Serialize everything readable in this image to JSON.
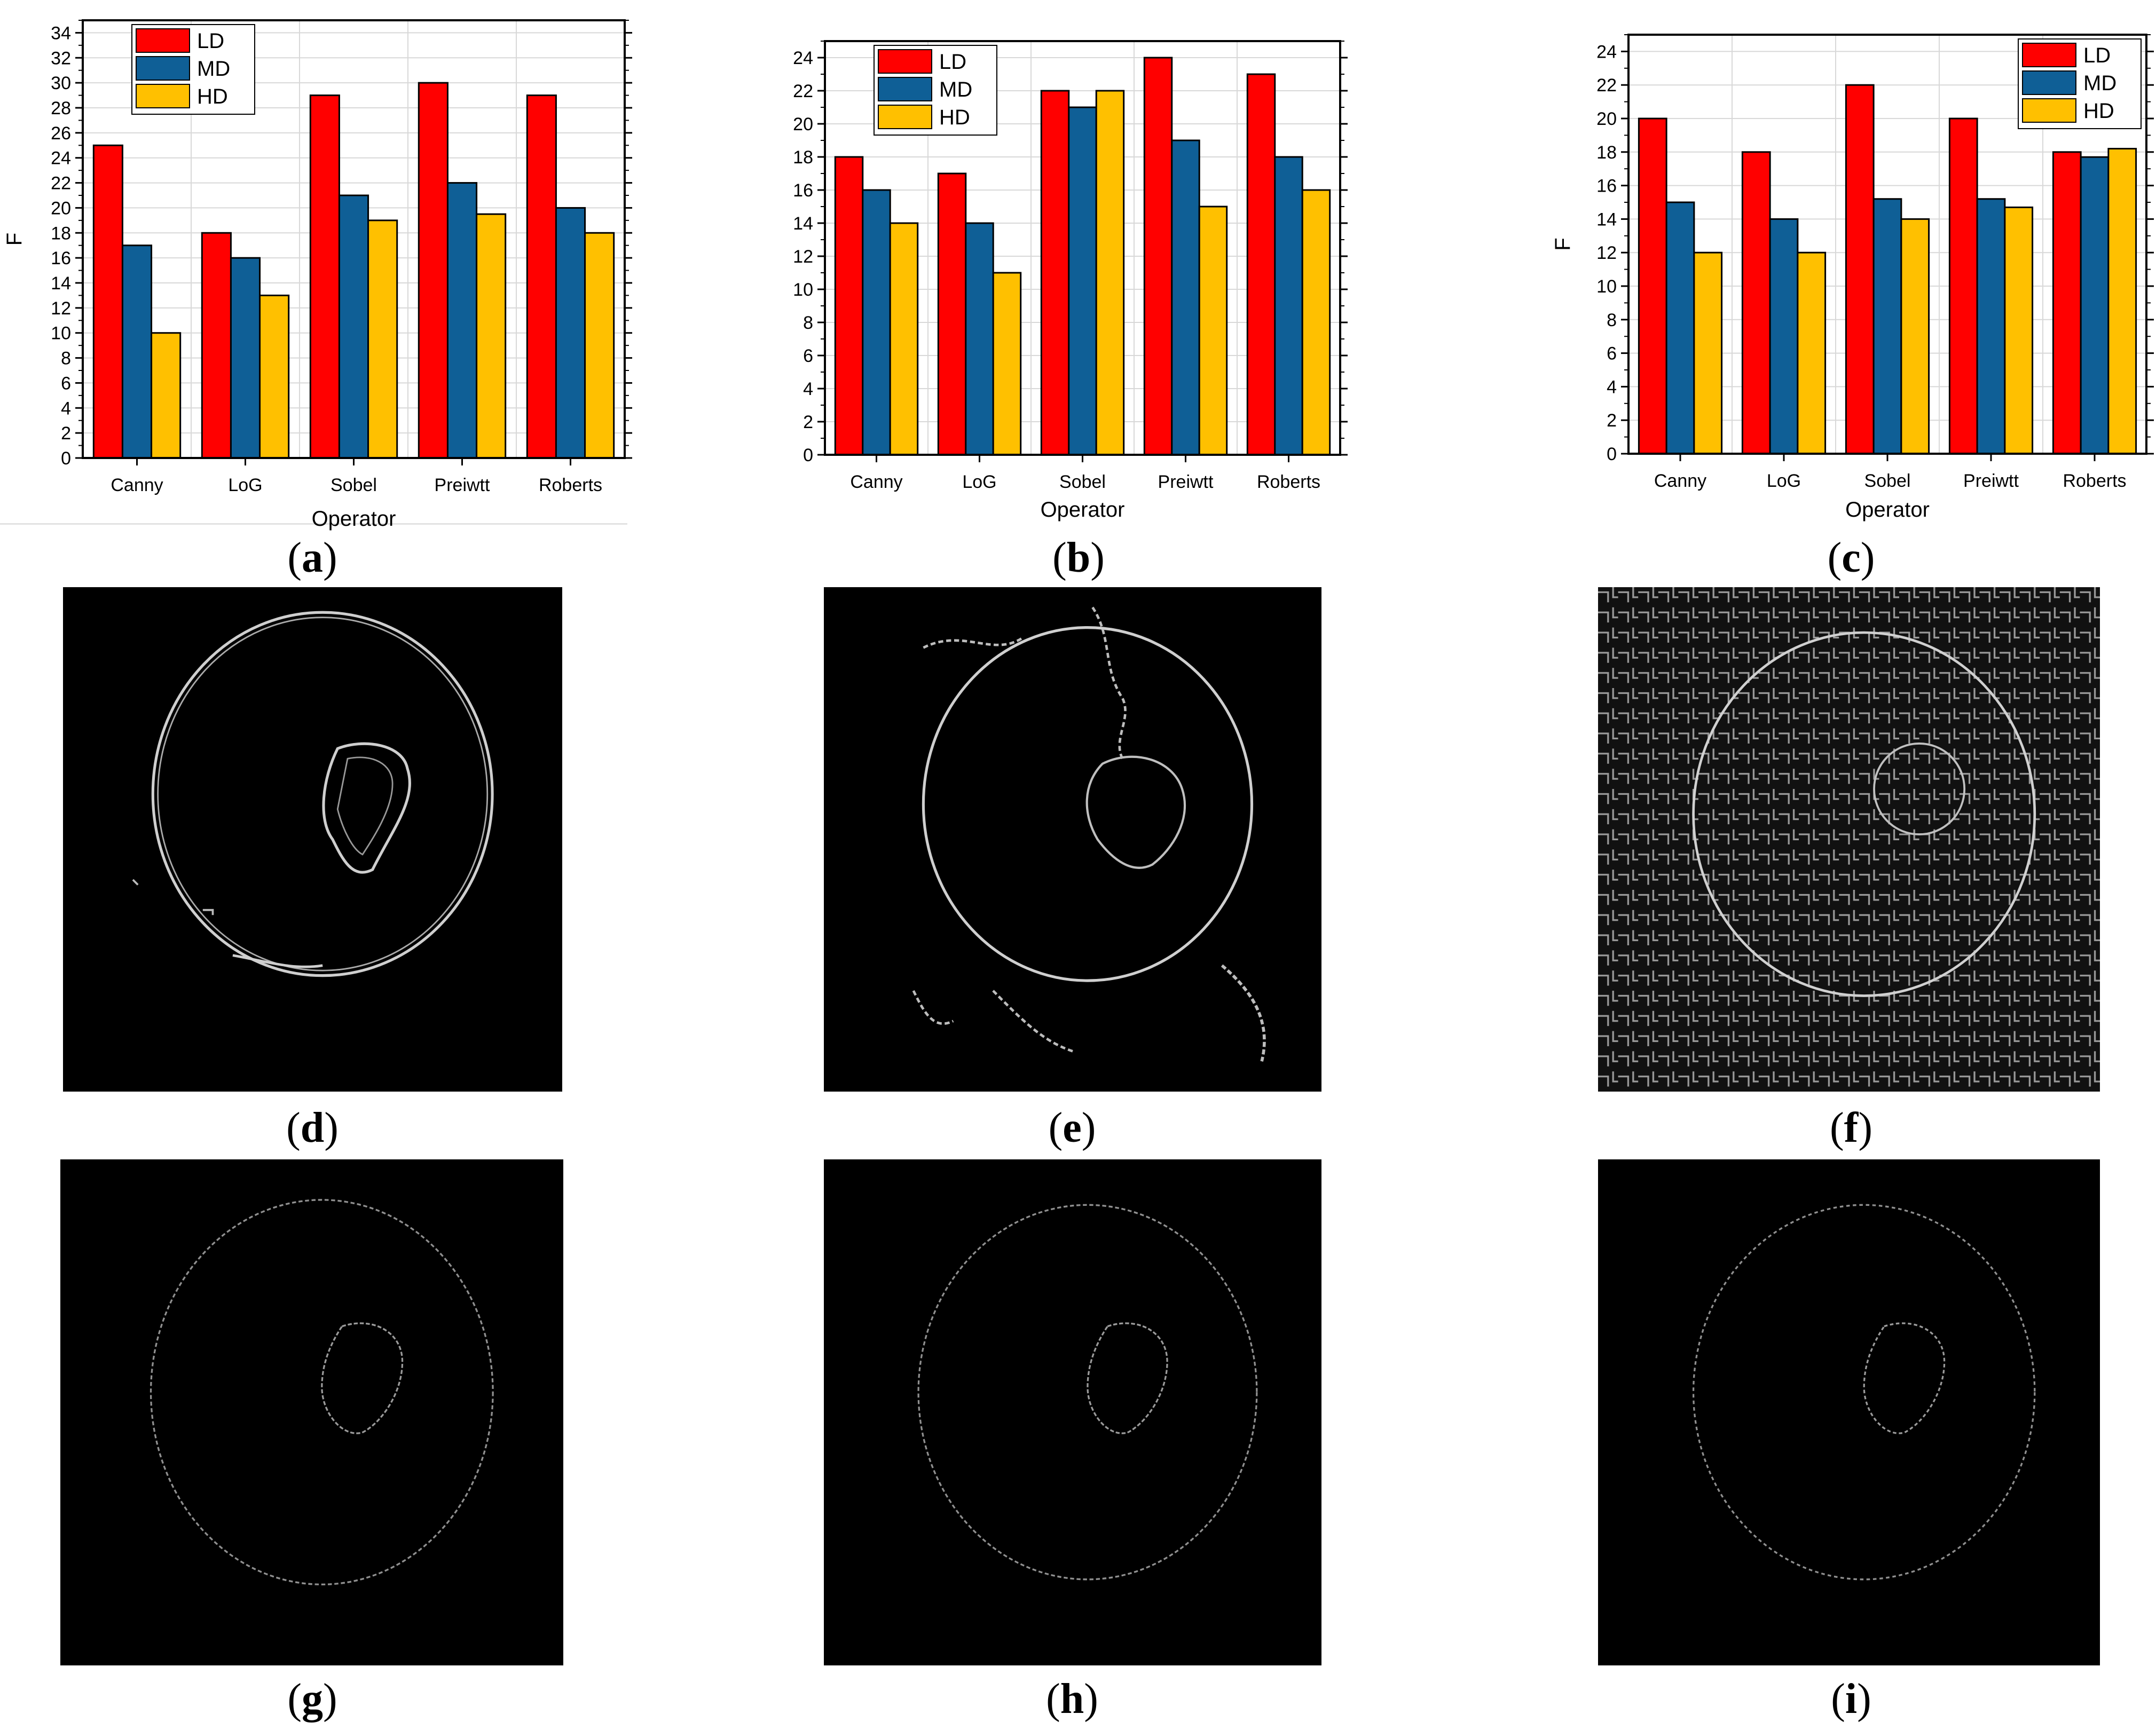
{
  "chart_data": [
    {
      "type": "bar",
      "panel": "a",
      "categories": [
        "Canny",
        "LoG",
        "Sobel",
        "Preiwtt",
        "Roberts"
      ],
      "series": [
        {
          "name": "LD",
          "values": [
            25,
            18,
            29,
            30,
            29
          ]
        },
        {
          "name": "MD",
          "values": [
            17,
            16,
            21,
            22,
            20
          ]
        },
        {
          "name": "HD",
          "values": [
            10,
            13,
            19,
            19.5,
            18
          ]
        }
      ],
      "xlabel": "Operator",
      "ylabel": "F",
      "ylim": [
        0,
        35
      ],
      "yticks": [
        0,
        2,
        4,
        6,
        8,
        10,
        12,
        14,
        16,
        18,
        20,
        22,
        24,
        26,
        28,
        30,
        32,
        34
      ],
      "grid": true,
      "legend": "top-left"
    },
    {
      "type": "bar",
      "panel": "b",
      "categories": [
        "Canny",
        "LoG",
        "Sobel",
        "Preiwtt",
        "Roberts"
      ],
      "series": [
        {
          "name": "LD",
          "values": [
            18,
            17,
            22,
            24,
            23
          ]
        },
        {
          "name": "MD",
          "values": [
            16,
            14,
            21,
            19,
            18
          ]
        },
        {
          "name": "HD",
          "values": [
            14,
            11,
            22,
            15,
            16
          ]
        }
      ],
      "xlabel": "Operator",
      "ylabel": "",
      "ylim": [
        0,
        25
      ],
      "yticks": [
        0,
        2,
        4,
        6,
        8,
        10,
        12,
        14,
        16,
        18,
        20,
        22,
        24
      ],
      "grid": true,
      "legend": "top-left"
    },
    {
      "type": "bar",
      "panel": "c",
      "categories": [
        "Canny",
        "LoG",
        "Sobel",
        "Preiwtt",
        "Roberts"
      ],
      "series": [
        {
          "name": "LD",
          "values": [
            20,
            18,
            22,
            20,
            18
          ]
        },
        {
          "name": "MD",
          "values": [
            15,
            14,
            15.2,
            15.2,
            17.7
          ]
        },
        {
          "name": "HD",
          "values": [
            12,
            12,
            14,
            14.7,
            18.2
          ]
        }
      ],
      "xlabel": "Operator",
      "ylabel": "F",
      "ylim": [
        0,
        25
      ],
      "yticks": [
        0,
        2,
        4,
        6,
        8,
        10,
        12,
        14,
        16,
        18,
        20,
        22,
        24
      ],
      "grid": true,
      "legend": "top-right"
    }
  ],
  "colors": {
    "LD": "#ff0000",
    "MD": "#0f5f96",
    "HD": "#ffc000"
  },
  "captions": {
    "a": "a",
    "b": "b",
    "c": "c",
    "d": "d",
    "e": "e",
    "f": "f",
    "g": "g",
    "h": "h",
    "i": "i"
  }
}
